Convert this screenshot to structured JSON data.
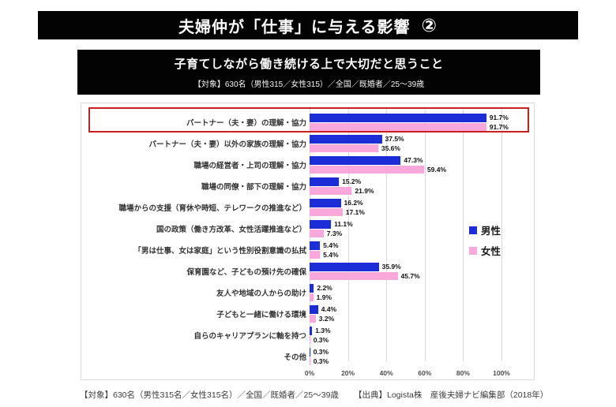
{
  "header": {
    "title": "夫婦仲が「仕事」に与える影響",
    "number": "②"
  },
  "chart_header": {
    "title": "子育てしながら働き続ける上で大切だと思うこと",
    "subtitle": "【対象】630名（男性315／女性315）／全国／既婚者／25〜39歳"
  },
  "chart_data": {
    "type": "bar",
    "orientation": "horizontal",
    "title": "子育てしながら働き続ける上で大切だと思うこと",
    "categories": [
      "パートナー（夫・妻）の理解・協力",
      "パートナー（夫・妻）以外の家族の理解・協力",
      "職場の経営者・上司の理解・協力",
      "職場の同僚・部下の理解・協力",
      "職場からの支援（育休や時短、テレワークの推進など）",
      "国の政策（働き方改革、女性活躍推進など）",
      "「男は仕事、女は家庭」という性別役割意識の払拭",
      "保育園など、子どもの預け先の確保",
      "友人や地域の人からの助け",
      "子どもと一緒に働ける環境",
      "自らのキャリアプランに軸を持つ",
      "その他"
    ],
    "series": [
      {
        "name": "男性",
        "color": "#1c2dd8",
        "values": [
          91.7,
          37.5,
          47.3,
          15.2,
          16.2,
          11.1,
          5.4,
          35.9,
          2.2,
          4.4,
          1.3,
          0.3
        ]
      },
      {
        "name": "女性",
        "color": "#f9a8dc",
        "values": [
          91.7,
          35.6,
          59.4,
          21.9,
          17.1,
          7.3,
          5.4,
          45.7,
          1.9,
          3.2,
          0.3,
          0.3
        ]
      }
    ],
    "xlim": [
      0,
      100
    ],
    "x_ticks": [
      "0%",
      "20%",
      "40%",
      "60%",
      "80%",
      "100%"
    ],
    "grid": true,
    "legend_position": "right-middle",
    "value_labels": "outside-end",
    "highlight": {
      "row_index": 0,
      "color": "#c9211f"
    }
  },
  "footer": {
    "source_left": "【対象】630名（男性315名／女性315名）／全国／既婚者／25〜39歳",
    "source_right": "【出典】Logista株　産後夫婦ナビ編集部（2018年）"
  }
}
